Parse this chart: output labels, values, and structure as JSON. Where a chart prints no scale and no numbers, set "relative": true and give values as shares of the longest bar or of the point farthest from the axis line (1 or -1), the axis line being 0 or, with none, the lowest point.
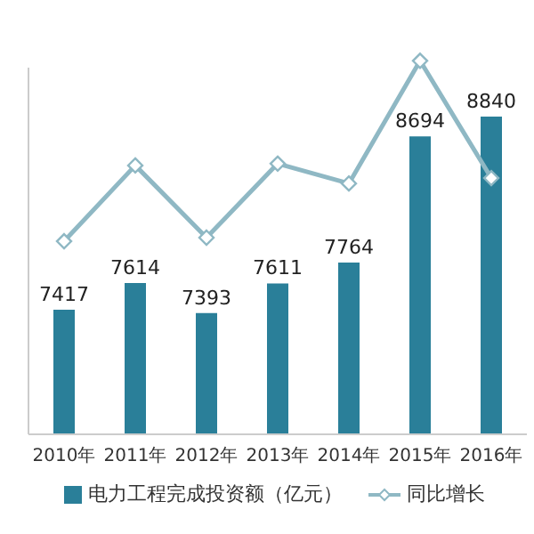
{
  "chart_data": [
    {
      "type": "bar",
      "categories": [
        "2010年",
        "2011年",
        "2012年",
        "2013年",
        "2014年",
        "2015年",
        "2016年"
      ],
      "series": [
        {
          "name": "电力工程完成投资额（亿元）",
          "color": "#2a7f99",
          "values": [
            7417,
            7614,
            7393,
            7611,
            7764,
            8694,
            8840
          ]
        }
      ],
      "ylim": [
        6500,
        9200
      ],
      "data_labels": true,
      "tick_labels": "x",
      "legend": "bottom"
    },
    {
      "type": "line",
      "categories": [
        null,
        null,
        null,
        null,
        null,
        null,
        null
      ],
      "series": [
        {
          "name": "同比增长",
          "color": "#8fb8c4",
          "values": [
            0,
            0.42,
            0.02,
            0.43,
            0.32,
            1,
            0.35
          ]
        }
      ],
      "relative": true,
      "marker": "diamond",
      "tick_labels": false,
      "legend": "bottom"
    }
  ]
}
